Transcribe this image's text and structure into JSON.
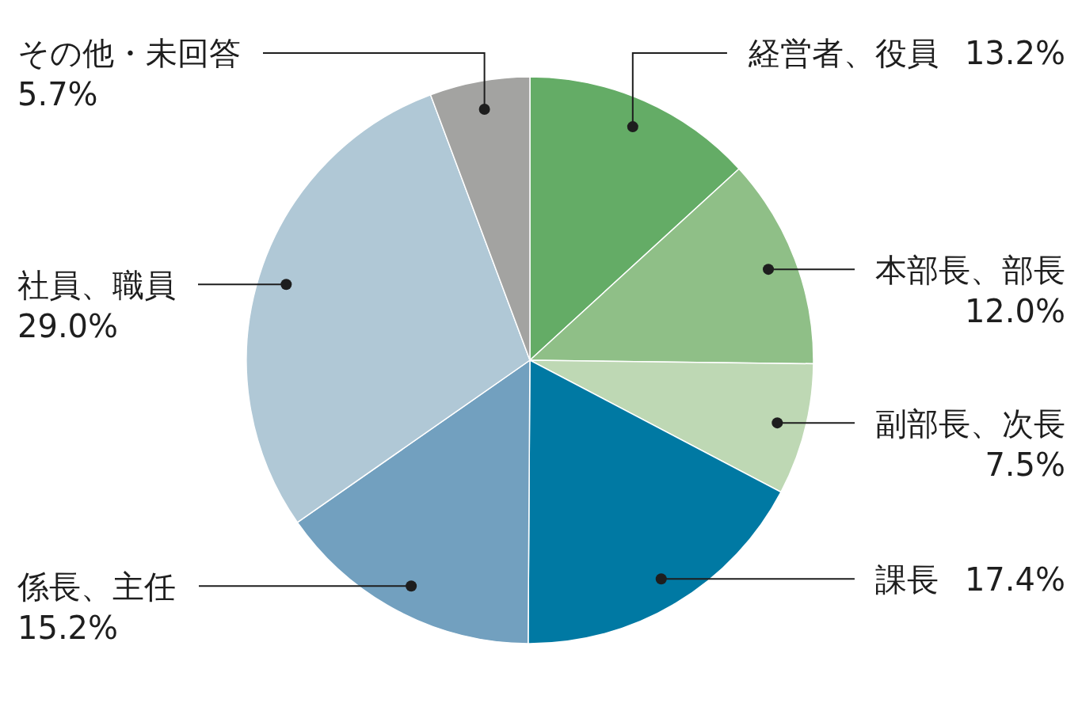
{
  "chart_data": {
    "type": "pie",
    "categories": [
      "経営者、役員",
      "本部長、部長",
      "副部長、次長",
      "課長",
      "係長、主任",
      "社員、職員",
      "その他・未回答"
    ],
    "values": [
      13.2,
      12.0,
      7.5,
      17.4,
      15.2,
      29.0,
      5.7
    ],
    "colors": [
      "#64ac66",
      "#8fbf87",
      "#bed8b4",
      "#0079a3",
      "#72a0bf",
      "#b0c8d6",
      "#a3a3a1"
    ],
    "value_labels": [
      "13.2%",
      "12.0%",
      "7.5%",
      "17.4%",
      "15.2%",
      "29.0%",
      "5.7%"
    ]
  }
}
